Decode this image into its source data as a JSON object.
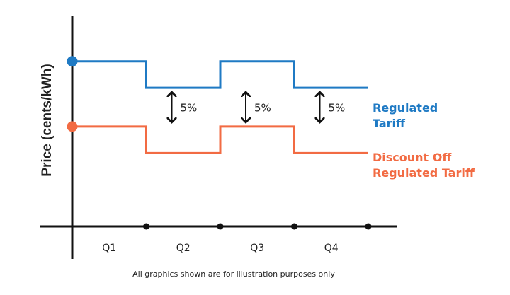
{
  "chart_data": {
    "type": "line",
    "ylabel": "Price (cents/kWh)",
    "categories": [
      "Q1",
      "Q2",
      "Q3",
      "Q4"
    ],
    "ylim": [
      0,
      10
    ],
    "grid": false,
    "series": [
      {
        "name_lines": [
          "Regulated",
          "Tariff"
        ],
        "color": "#1f7ac4",
        "values": [
          8.1,
          6.8,
          8.1,
          6.8
        ]
      },
      {
        "name_lines": [
          "Discount Off",
          "Regulated Tariff"
        ],
        "color": "#f26b43",
        "values": [
          4.9,
          3.6,
          4.9,
          3.6
        ]
      }
    ],
    "annotations": [
      {
        "label": "5%",
        "category_boundary": 1
      },
      {
        "label": "5%",
        "category_boundary": 2
      },
      {
        "label": "5%",
        "category_boundary": 3
      }
    ],
    "footnote": "All graphics shown are for illustration purposes only"
  }
}
